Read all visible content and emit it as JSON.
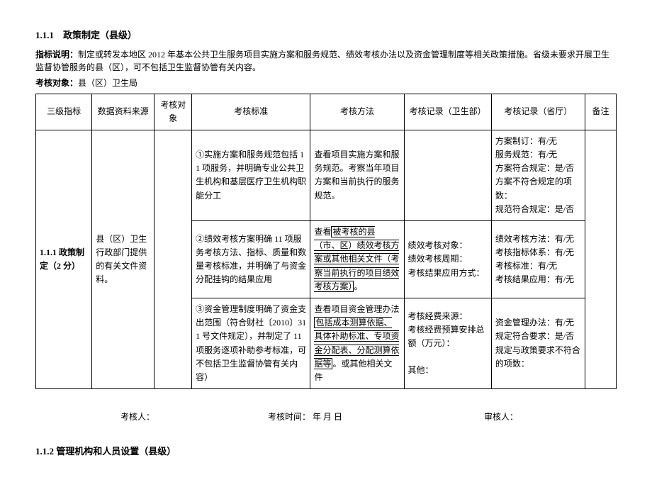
{
  "section1": {
    "number": "1.1.1",
    "title": "政策制定（县级）",
    "desc_label": "指标说明：",
    "desc_text": "制定或转发本地区 2012 年基本公共卫生服务项目实施方案和服务规范、绩效考核办法以及资金管理制度等相关政策措施。省级未要求开展卫生监督协管服务的县（区），可不包括卫生监督协管有关内容。",
    "obj_label": "考核对象：",
    "obj_text": "县（区）卫生局"
  },
  "headers": {
    "c1": "三级指标",
    "c2": "数据资料来源",
    "c3": "考核对象",
    "c4": "考核标准",
    "c5": "考核方法",
    "c6": "考核记录（卫生部）",
    "c7": "考核记录（省厅）",
    "c8": "备注"
  },
  "row_index": "1.1.1 政策制定（2 分）",
  "row_source": "县（区）卫生行政部门提供的有关文件资料。",
  "rows": [
    {
      "std": "①实施方案和服务规范包括 11 项服务，并明确专业公共卫生机构和基层医疗卫生机构职能分工",
      "method": "查看项目实施方案和服务规范。考察当年项目方案和当前执行的服务规范。",
      "rec1": "",
      "rec2": "方案制订：有/无\n服务规范：有/无\n方案符合规定：是/否\n方案不符合规定的项数：\n规范符合规定：是/否"
    },
    {
      "std": "②绩效考核方案明确 11 项服务考核方法、指标、质量和数量考核标准，并明确了与资金分配挂钩的结果应用",
      "method_pre": "查看",
      "method_box": "被考核的县（市、区）绩效考核方案或其他相关文件（考察当前执行的项目绩效考核方案）",
      "method_post": "。",
      "rec1": "绩效考核对象：\n绩效考核周期：\n考核结果应用方式：",
      "rec2": "绩效考核方法：有/无\n考核指标体系：有/无\n考核标准：有/无\n考核结果应用：有/无"
    },
    {
      "std": "③资金管理制度明确了资金支出范围（符合财社〔2010〕311 号文件规定），并制定了 11 项服务逐项补助参考标准，可不包括卫生监督协管有关内容）",
      "method_pre": "查看项目资金管理办法",
      "method_box": "包括成本测算依据、具体补助标准、专项资金分配表、分配测算依据等",
      "method_post": "。或其他相关文件",
      "rec1": "考核经费来源：\n考核经费预算安排总额（万元）：\n\n其他：",
      "rec2": "资金管理办法：有/无\n规定符合要求：是/否\n规定与政策要求不符合的项数："
    }
  ],
  "footer": {
    "assessor": "考核人：",
    "time": "考核时间：   年   月   日",
    "reviewer": "审核人："
  },
  "section2": "1.1.2 管理机构和人员设置（县级）"
}
